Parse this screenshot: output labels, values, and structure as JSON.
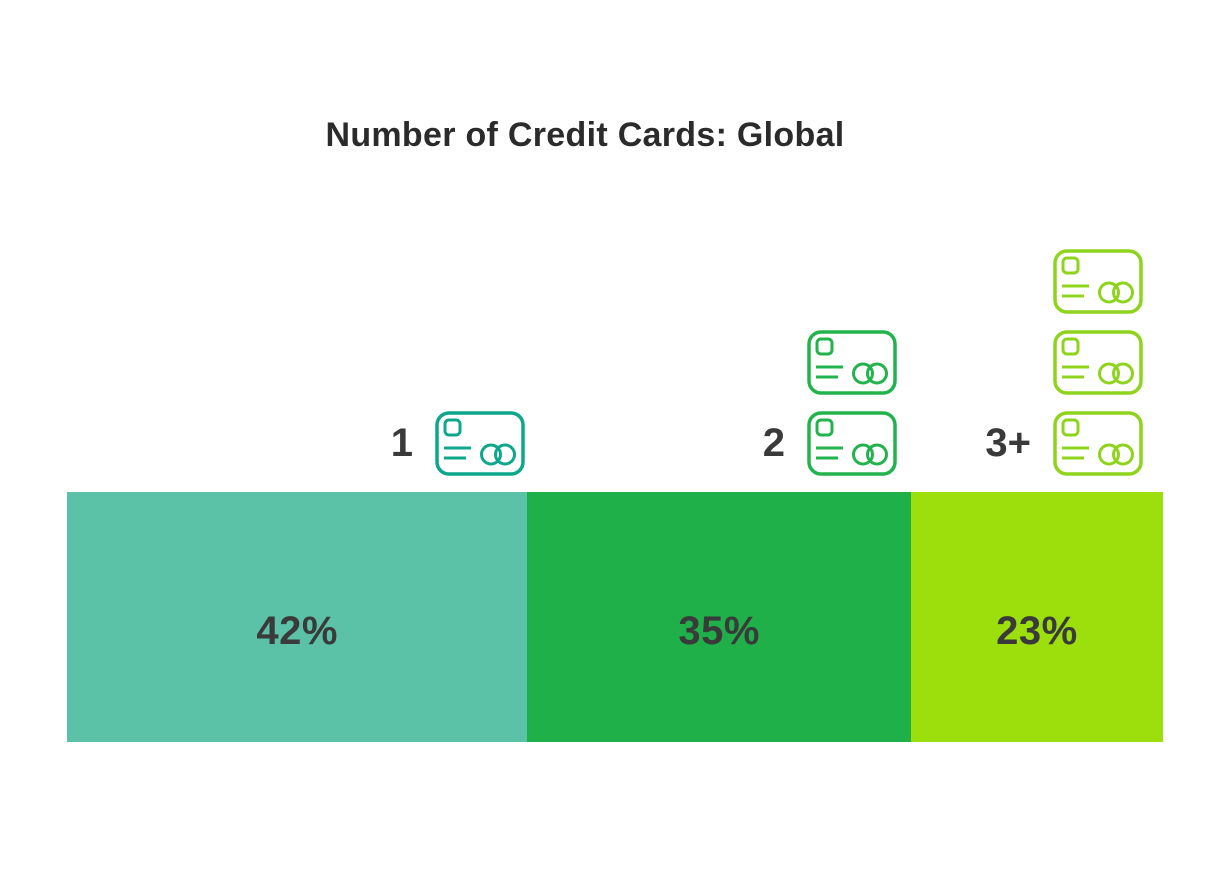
{
  "title": "Number of Credit Cards: Global",
  "chart_data": {
    "type": "bar",
    "variant": "horizontal-stacked-percentage",
    "title": "Number of Credit Cards: Global",
    "categories": [
      "1",
      "2",
      "3+"
    ],
    "values": [
      42,
      35,
      23
    ],
    "unit": "%",
    "data_labels": [
      "42%",
      "35%",
      "23%"
    ],
    "legend": "none",
    "axes": "none",
    "grid": false,
    "segments": [
      {
        "category": "1",
        "value": 42,
        "label": "42%",
        "card_icon_count": 1,
        "fill": "#5bc2a8",
        "icon_color": "#0fa78c"
      },
      {
        "category": "2",
        "value": 35,
        "label": "35%",
        "card_icon_count": 2,
        "fill": "#1fb04a",
        "icon_color": "#23b34d"
      },
      {
        "category": "3+",
        "value": 23,
        "label": "23%",
        "card_icon_count": 3,
        "fill": "#9cdf0d",
        "icon_color": "#8fd41c"
      }
    ]
  },
  "colors": {
    "background": "#ffffff",
    "text": "#3a3a3a",
    "title_text": "#2b2b2b"
  },
  "icons": {
    "credit-card": "outlined credit card: rounded rectangle, chip square, two text lines, two overlapping circles"
  }
}
